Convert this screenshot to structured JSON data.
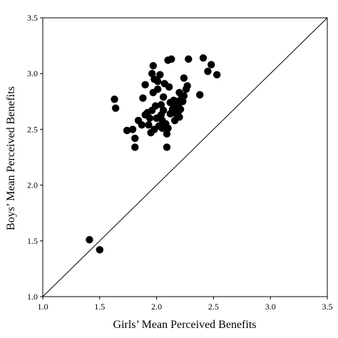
{
  "chart_data": {
    "type": "scatter",
    "xlabel": "Girls’ Mean Perceived Benefits",
    "ylabel": "Boys’ Mean Perceived Benefits",
    "xlim": [
      1.0,
      3.5
    ],
    "ylim": [
      1.0,
      3.5
    ],
    "xticks": [
      "1.0",
      "1.5",
      "2.0",
      "2.5",
      "3.0",
      "3.5"
    ],
    "yticks": [
      "1.0",
      "1.5",
      "2.0",
      "2.5",
      "3.0",
      "3.5"
    ],
    "grid": false,
    "reference_line": {
      "from": [
        1.0,
        1.0
      ],
      "to": [
        3.5,
        3.5
      ]
    },
    "points": [
      [
        1.41,
        1.51
      ],
      [
        1.5,
        1.42
      ],
      [
        1.63,
        2.77
      ],
      [
        1.64,
        2.69
      ],
      [
        1.74,
        2.49
      ],
      [
        1.79,
        2.5
      ],
      [
        1.81,
        2.42
      ],
      [
        1.81,
        2.34
      ],
      [
        1.84,
        2.58
      ],
      [
        1.87,
        2.54
      ],
      [
        1.88,
        2.78
      ],
      [
        1.9,
        2.9
      ],
      [
        1.9,
        2.63
      ],
      [
        1.92,
        2.65
      ],
      [
        1.93,
        2.54
      ],
      [
        1.94,
        2.6
      ],
      [
        1.95,
        2.47
      ],
      [
        1.96,
        2.67
      ],
      [
        1.96,
        3.0
      ],
      [
        1.97,
        3.07
      ],
      [
        1.97,
        2.83
      ],
      [
        1.98,
        2.95
      ],
      [
        1.98,
        2.5
      ],
      [
        1.99,
        2.71
      ],
      [
        2.0,
        2.6
      ],
      [
        2.01,
        2.93
      ],
      [
        2.01,
        2.86
      ],
      [
        2.02,
        2.53
      ],
      [
        2.03,
        2.99
      ],
      [
        2.04,
        2.72
      ],
      [
        2.04,
        2.63
      ],
      [
        2.05,
        2.58
      ],
      [
        2.05,
        2.51
      ],
      [
        2.06,
        2.79
      ],
      [
        2.06,
        2.67
      ],
      [
        2.07,
        2.91
      ],
      [
        2.08,
        2.55
      ],
      [
        2.09,
        2.46
      ],
      [
        2.09,
        2.34
      ],
      [
        2.1,
        3.12
      ],
      [
        2.1,
        2.51
      ],
      [
        2.11,
        2.88
      ],
      [
        2.12,
        2.74
      ],
      [
        2.12,
        2.64
      ],
      [
        2.13,
        3.13
      ],
      [
        2.14,
        2.68
      ],
      [
        2.15,
        2.76
      ],
      [
        2.16,
        2.58
      ],
      [
        2.16,
        2.7
      ],
      [
        2.17,
        2.64
      ],
      [
        2.18,
        2.75
      ],
      [
        2.19,
        2.66
      ],
      [
        2.19,
        2.71
      ],
      [
        2.2,
        2.61
      ],
      [
        2.2,
        2.83
      ],
      [
        2.21,
        2.68
      ],
      [
        2.22,
        2.78
      ],
      [
        2.23,
        2.75
      ],
      [
        2.24,
        2.96
      ],
      [
        2.24,
        2.8
      ],
      [
        2.26,
        2.86
      ],
      [
        2.27,
        2.89
      ],
      [
        2.28,
        3.13
      ],
      [
        2.38,
        2.81
      ],
      [
        2.41,
        3.14
      ],
      [
        2.45,
        3.02
      ],
      [
        2.48,
        3.08
      ],
      [
        2.53,
        2.99
      ]
    ]
  }
}
